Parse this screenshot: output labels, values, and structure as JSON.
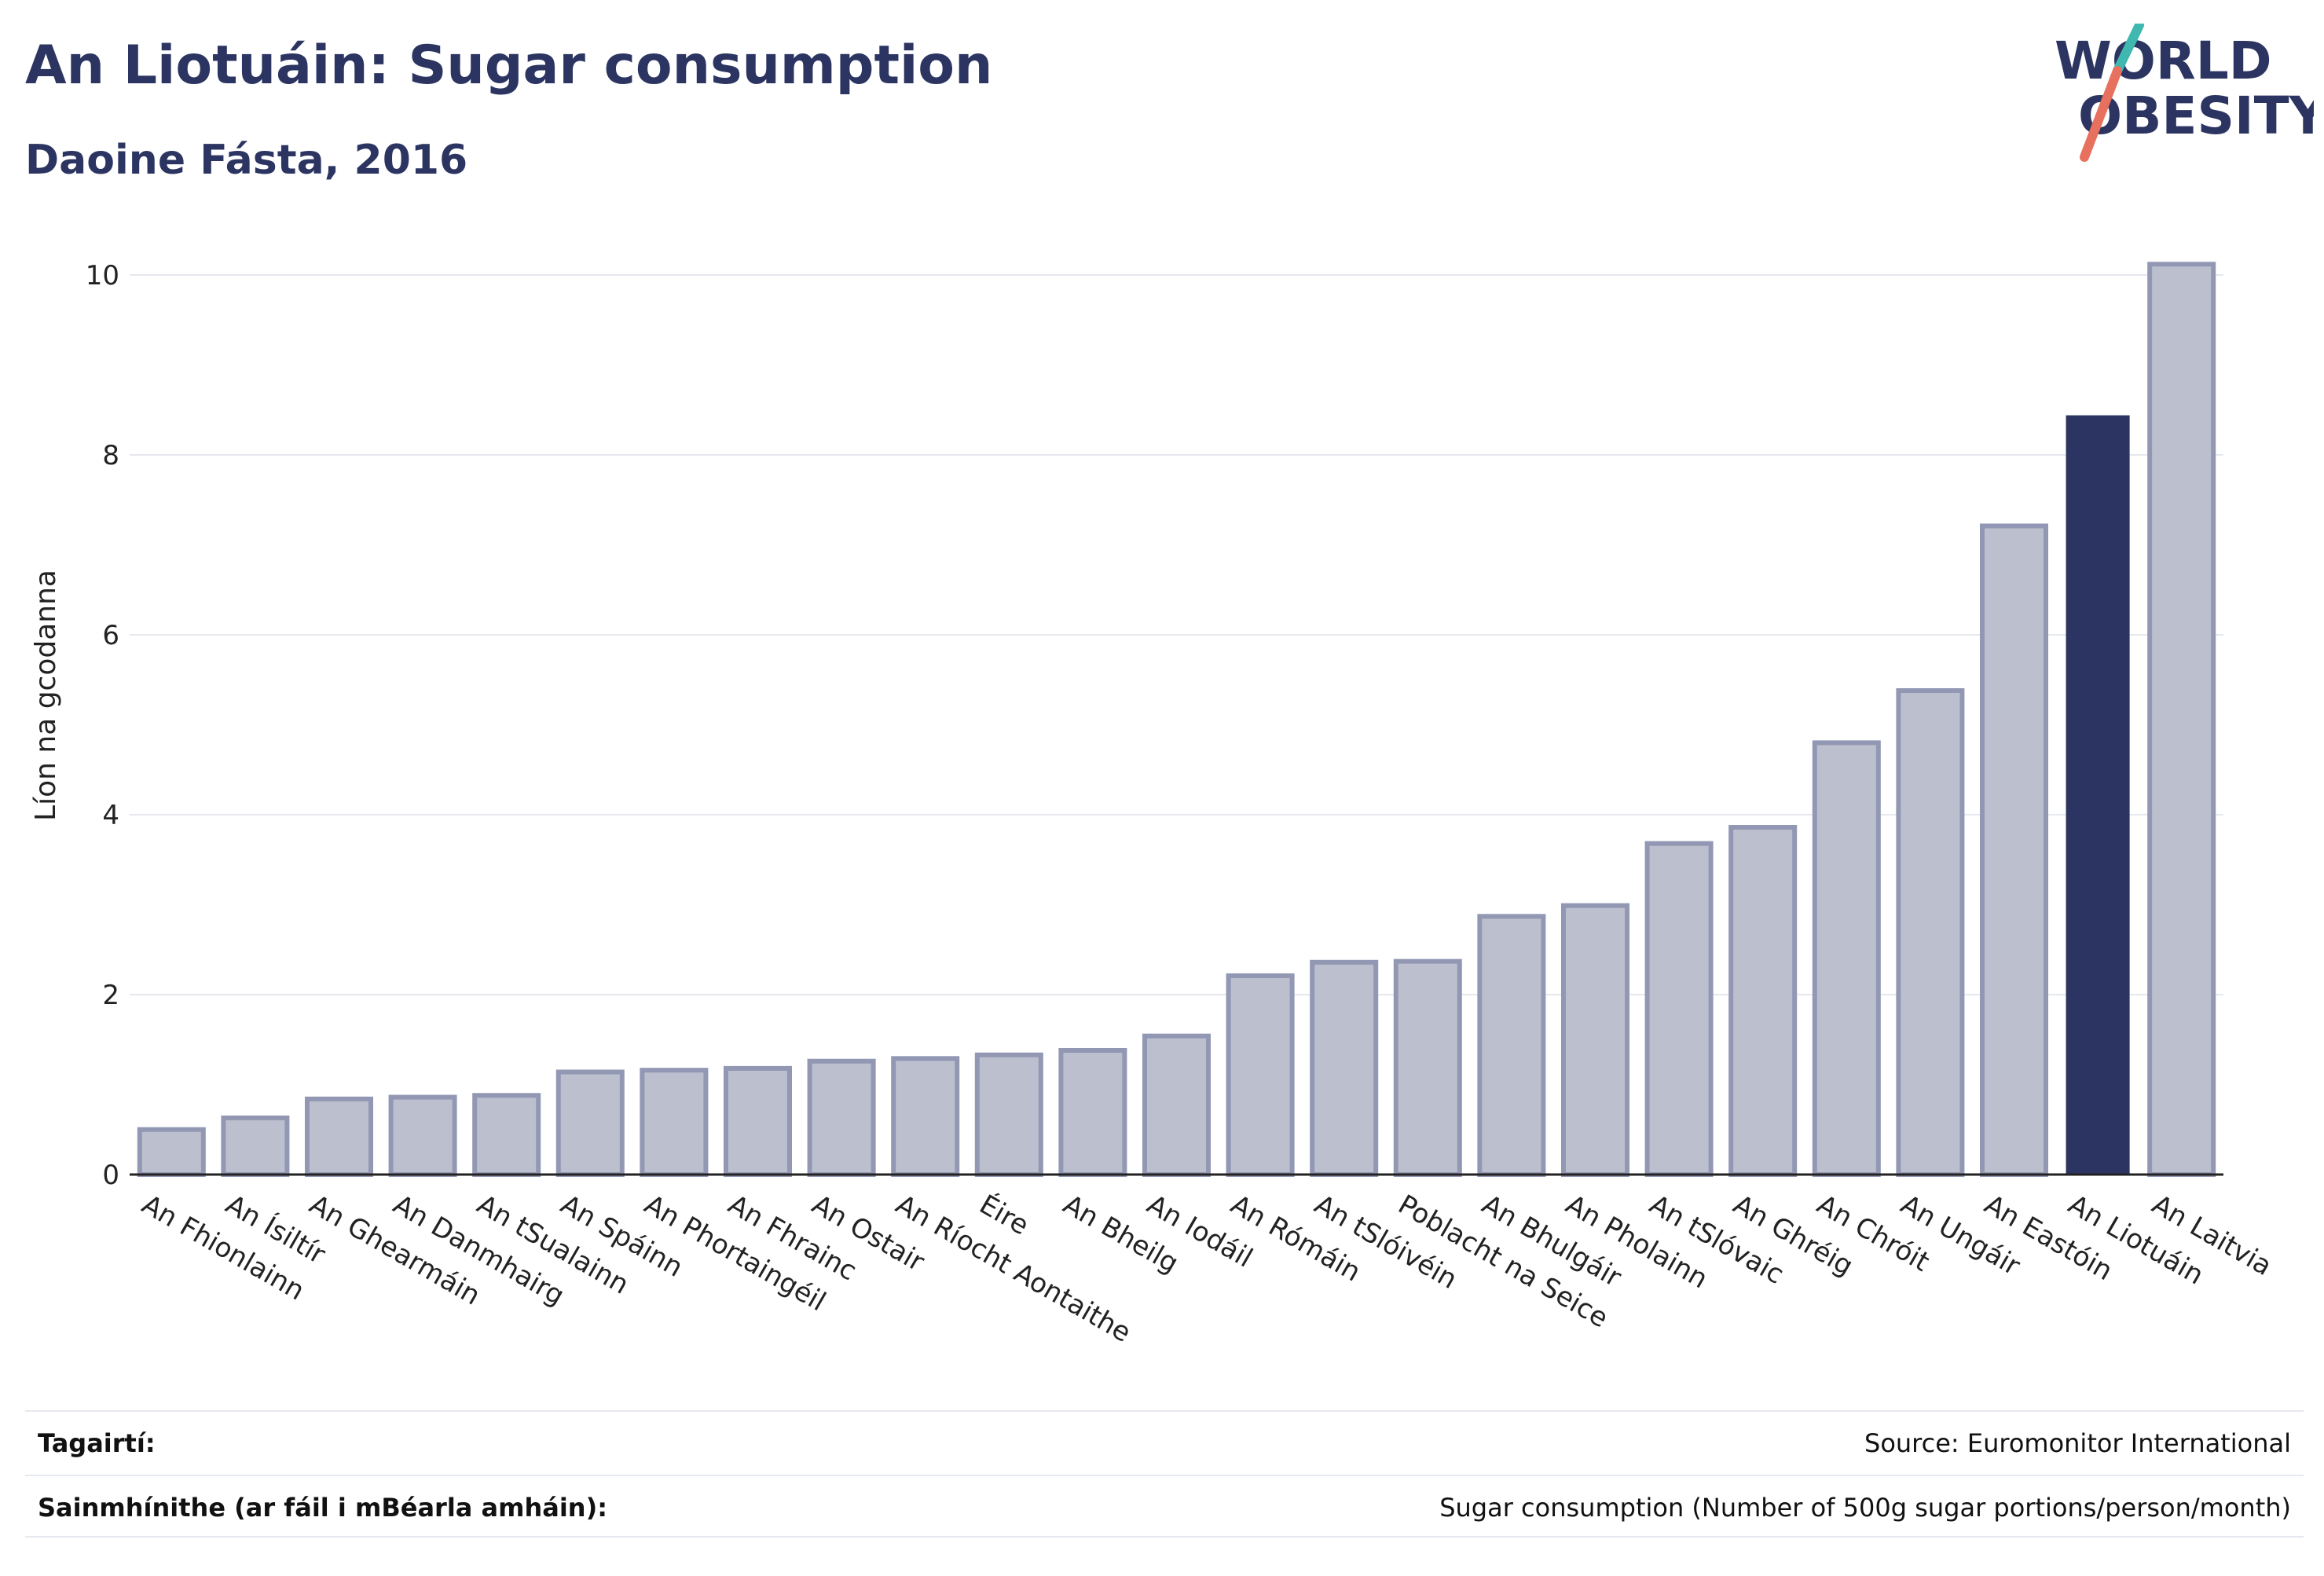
{
  "header": {
    "title": "An Liotuáin: Sugar consumption",
    "subtitle": "Daoine Fásta, 2016"
  },
  "logo": {
    "line1": "WORLD",
    "line2": "OBESITY",
    "colors": {
      "text": "#2c3561",
      "slash_top": "#3fb8b0",
      "slash_bottom": "#e8705e"
    }
  },
  "chart_data": {
    "type": "bar",
    "ylabel": "Líon na gcodanna",
    "ylim": [
      0,
      10.5
    ],
    "yticks": [
      0,
      2,
      4,
      6,
      8,
      10
    ],
    "grid": true,
    "highlight": "An Liotuáin",
    "colors": {
      "bar": "#bcc0ce",
      "bar_edge": "#9297b3",
      "highlight": "#2c3561"
    },
    "categories": [
      "An Fhionlainn",
      "An Ísiltír",
      "An Ghearmáin",
      "An Danmhairg",
      "An tSualainn",
      "An Spáinn",
      "An Phortaingéil",
      "An Fhrainc",
      "An Ostair",
      "An Ríocht Aontaithe",
      "Éire",
      "An Bheilg",
      "An Iodáil",
      "An Rómáin",
      "An tSlóivéin",
      "Poblacht na Seice",
      "An Bhulgáir",
      "An Pholainn",
      "An tSlóvaic",
      "An Ghréig",
      "An Chróit",
      "An Ungáir",
      "An Eastóin",
      "An Liotuáin",
      "An Laitvia"
    ],
    "values": [
      0.5,
      0.63,
      0.84,
      0.86,
      0.88,
      1.14,
      1.16,
      1.18,
      1.26,
      1.29,
      1.33,
      1.38,
      1.54,
      2.21,
      2.36,
      2.37,
      2.87,
      2.99,
      3.68,
      3.86,
      4.8,
      5.38,
      7.21,
      8.44,
      10.12
    ]
  },
  "footer": {
    "refs_label": "Tagairtí:",
    "refs_value": "Source: Euromonitor International",
    "defs_label": "Sainmhínithe (ar fáil i mBéarla amháin):",
    "defs_value": "Sugar consumption (Number of 500g sugar portions/person/month)"
  }
}
